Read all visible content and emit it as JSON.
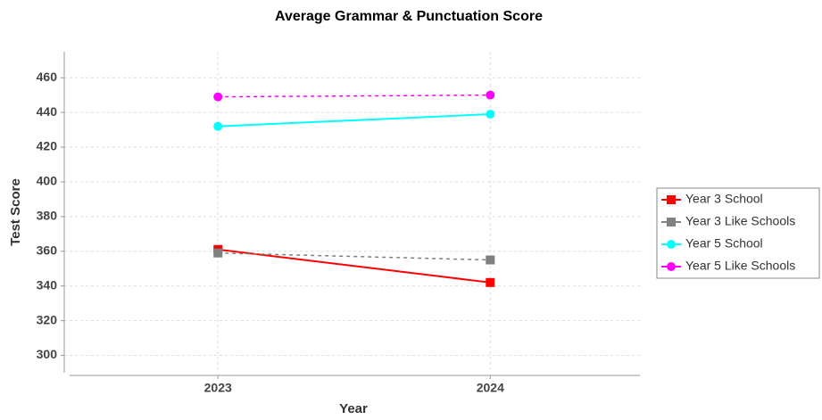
{
  "chart_data": {
    "type": "line",
    "title": "Average Grammar & Punctuation Score",
    "x_label": "Year",
    "y_label": "Test Score",
    "categories": [
      "2023",
      "2024"
    ],
    "series": [
      {
        "name": "Year 3 School",
        "color": "#ff0000",
        "marker": "square",
        "dashed": false,
        "values": [
          361,
          342
        ]
      },
      {
        "name": "Year 3 Like Schools",
        "color": "#808080",
        "marker": "square",
        "dashed": true,
        "values": [
          359,
          355
        ]
      },
      {
        "name": "Year 5 School",
        "color": "#00ffff",
        "marker": "circle",
        "dashed": false,
        "values": [
          432,
          439
        ]
      },
      {
        "name": "Year 5 Like Schools",
        "color": "#ff00ff",
        "marker": "circle",
        "dashed": true,
        "values": [
          449,
          450
        ]
      }
    ],
    "ylim": [
      290,
      475
    ],
    "yticks": [
      300,
      320,
      340,
      360,
      380,
      400,
      420,
      440,
      460
    ],
    "grid": true,
    "legend": "right"
  }
}
